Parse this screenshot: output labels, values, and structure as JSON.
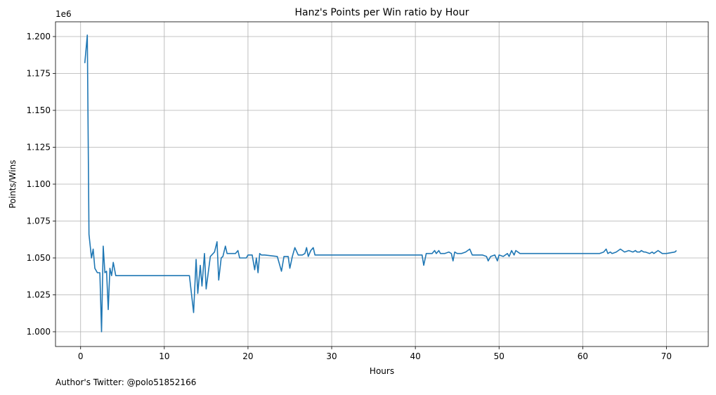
{
  "chart_data": {
    "type": "line",
    "title": "Hanz's Points per Win ratio by Hour",
    "xlabel": "Hours",
    "ylabel": "Points/Wins",
    "y_offset_label": "1e6",
    "xlim": [
      -3,
      75
    ],
    "ylim": [
      0.99,
      1.21
    ],
    "x_ticks": [
      0,
      10,
      20,
      30,
      40,
      50,
      60,
      70
    ],
    "y_ticks": [
      1.0,
      1.025,
      1.05,
      1.075,
      1.1,
      1.125,
      1.15,
      1.175,
      1.2
    ],
    "y_tick_labels": [
      "1.000",
      "1.025",
      "1.050",
      "1.075",
      "1.100",
      "1.125",
      "1.150",
      "1.175",
      "1.200"
    ],
    "grid": true,
    "color": "#1f77b4",
    "series": [
      {
        "x": [
          0.5,
          0.8,
          1.0,
          1.3,
          1.5,
          1.7,
          2.0,
          2.3,
          2.5,
          2.7,
          2.9,
          3.1,
          3.3,
          3.5,
          3.7,
          3.9,
          4.2,
          4.5,
          13.0,
          13.5,
          13.8,
          14.0,
          14.3,
          14.5,
          14.8,
          15.0,
          15.5,
          16.0,
          16.3,
          16.5,
          16.8,
          17.0,
          17.3,
          17.5,
          18.5,
          18.8,
          19.0,
          19.8,
          20.0,
          20.5,
          20.8,
          21.0,
          21.2,
          21.4,
          21.6,
          22.0,
          23.5,
          24.0,
          24.3,
          24.5,
          24.8,
          25.0,
          25.3,
          25.6,
          26.0,
          26.5,
          26.8,
          27.0,
          27.2,
          27.5,
          27.8,
          28.0,
          28.3,
          40.8,
          41.0,
          41.3,
          42.0,
          42.3,
          42.5,
          42.8,
          43.0,
          43.5,
          44.0,
          44.3,
          44.5,
          44.7,
          45.0,
          45.5,
          46.0,
          46.5,
          46.8,
          47.5,
          48.0,
          48.5,
          48.7,
          49.0,
          49.5,
          49.8,
          50.0,
          50.5,
          51.0,
          51.2,
          51.5,
          51.8,
          52.0,
          52.5,
          62.0,
          62.5,
          62.8,
          63.0,
          63.3,
          63.5,
          64.0,
          64.5,
          65.0,
          65.5,
          66.0,
          66.3,
          66.5,
          66.8,
          67.0,
          67.3,
          67.5,
          68.0,
          68.3,
          68.5,
          69.0,
          69.5,
          70.0,
          71.0,
          71.2
        ],
        "y": [
          1.182,
          1.201,
          1.066,
          1.05,
          1.056,
          1.043,
          1.04,
          1.04,
          1.0,
          1.058,
          1.04,
          1.041,
          1.015,
          1.043,
          1.038,
          1.047,
          1.038,
          1.038,
          1.038,
          1.013,
          1.049,
          1.026,
          1.045,
          1.031,
          1.053,
          1.029,
          1.051,
          1.054,
          1.061,
          1.035,
          1.05,
          1.051,
          1.058,
          1.053,
          1.053,
          1.055,
          1.05,
          1.05,
          1.052,
          1.052,
          1.042,
          1.05,
          1.04,
          1.053,
          1.052,
          1.052,
          1.051,
          1.041,
          1.051,
          1.051,
          1.051,
          1.043,
          1.051,
          1.057,
          1.052,
          1.052,
          1.053,
          1.057,
          1.051,
          1.055,
          1.057,
          1.052,
          1.052,
          1.052,
          1.045,
          1.053,
          1.053,
          1.055,
          1.053,
          1.055,
          1.053,
          1.053,
          1.054,
          1.053,
          1.048,
          1.054,
          1.053,
          1.053,
          1.054,
          1.056,
          1.052,
          1.052,
          1.052,
          1.051,
          1.048,
          1.051,
          1.052,
          1.048,
          1.052,
          1.051,
          1.053,
          1.051,
          1.055,
          1.052,
          1.055,
          1.053,
          1.053,
          1.054,
          1.056,
          1.053,
          1.054,
          1.053,
          1.054,
          1.056,
          1.054,
          1.055,
          1.054,
          1.055,
          1.054,
          1.054,
          1.055,
          1.054,
          1.054,
          1.053,
          1.054,
          1.053,
          1.055,
          1.053,
          1.053,
          1.054,
          1.055
        ]
      }
    ]
  },
  "footer": {
    "text": "Author's Twitter: @polo51852166"
  }
}
